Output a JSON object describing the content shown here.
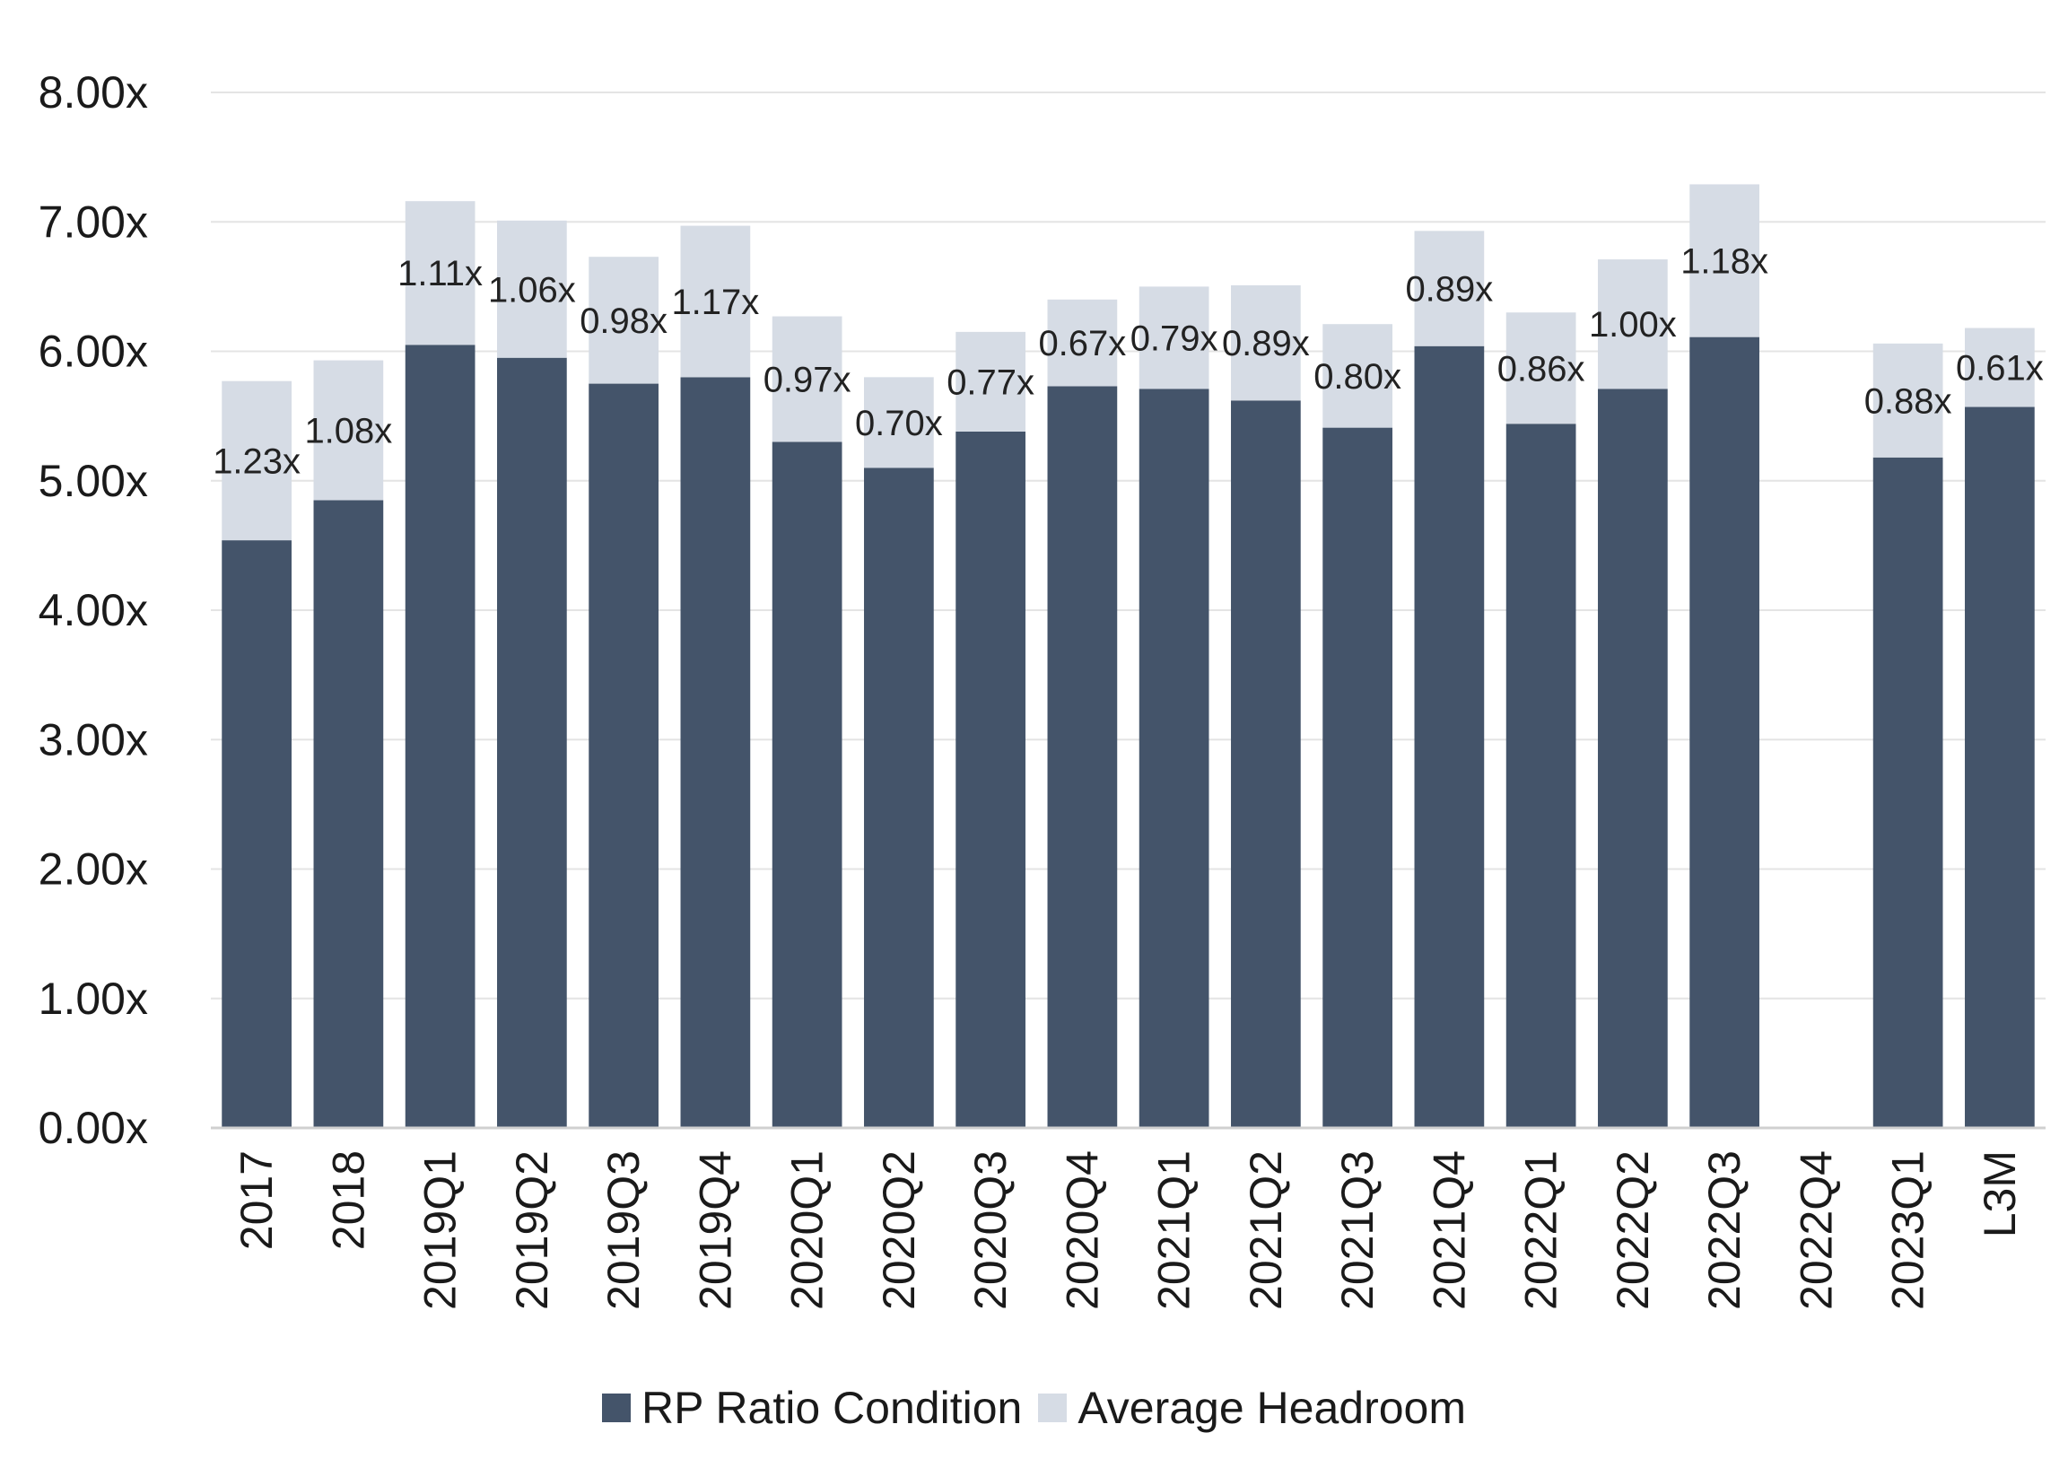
{
  "chart_data": {
    "type": "bar",
    "stacked": true,
    "categories": [
      "2017",
      "2018",
      "2019Q1",
      "2019Q2",
      "2019Q3",
      "2019Q4",
      "2020Q1",
      "2020Q2",
      "2020Q3",
      "2020Q4",
      "2021Q1",
      "2021Q2",
      "2021Q3",
      "2021Q4",
      "2022Q1",
      "2022Q2",
      "2022Q3",
      "2022Q4",
      "2023Q1",
      "L3M"
    ],
    "series": [
      {
        "name": "RP Ratio Condition",
        "color": "#44546a",
        "values": [
          4.54,
          4.85,
          6.05,
          5.95,
          5.75,
          5.8,
          5.3,
          5.1,
          5.38,
          5.73,
          5.71,
          5.62,
          5.41,
          6.04,
          5.44,
          5.71,
          6.11,
          null,
          5.18,
          5.57
        ]
      },
      {
        "name": "Average Headroom",
        "color": "#d6dce5",
        "values": [
          1.23,
          1.08,
          1.11,
          1.06,
          0.98,
          1.17,
          0.97,
          0.7,
          0.77,
          0.67,
          0.79,
          0.89,
          0.8,
          0.89,
          0.86,
          1.0,
          1.18,
          null,
          0.88,
          0.61
        ],
        "data_labels": [
          "1.23x",
          "1.08x",
          "1.11x",
          "1.06x",
          "0.98x",
          "1.17x",
          "0.97x",
          "0.70x",
          "0.77x",
          "0.67x",
          "0.79x",
          "0.89x",
          "0.80x",
          "0.89x",
          "0.86x",
          "1.00x",
          "1.18x",
          "",
          "0.88x",
          "0.61x"
        ]
      }
    ],
    "ylim": [
      0,
      8
    ],
    "yticks": [
      "0.00x",
      "1.00x",
      "2.00x",
      "3.00x",
      "4.00x",
      "5.00x",
      "6.00x",
      "7.00x",
      "8.00x"
    ],
    "grid": true,
    "legend_position": "bottom",
    "title": "",
    "xlabel": "",
    "ylabel": ""
  }
}
